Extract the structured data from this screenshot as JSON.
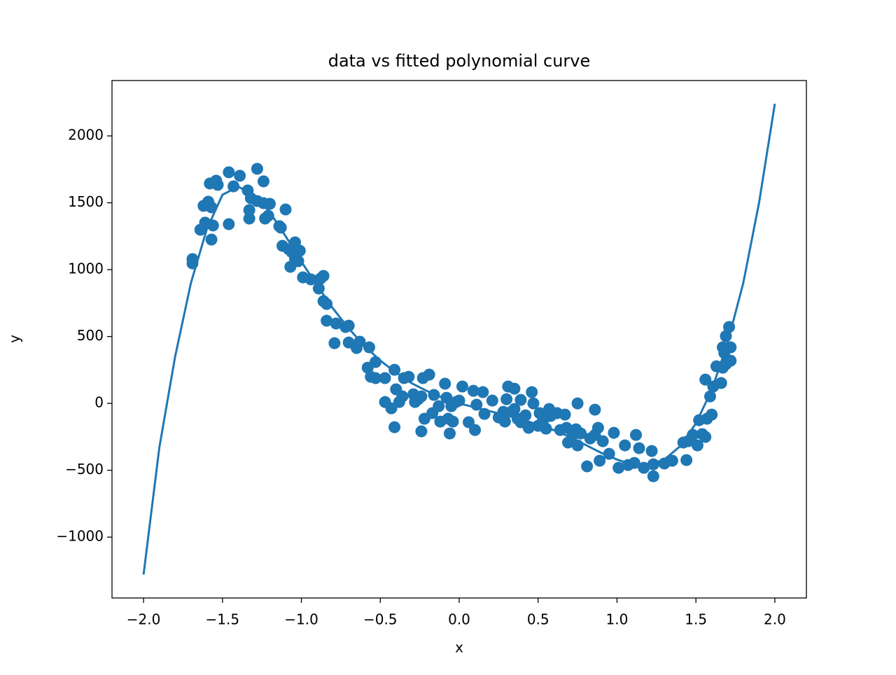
{
  "chart_data": {
    "type": "scatter",
    "title": "data vs fitted polynomial curve",
    "xlabel": "x",
    "ylabel": "y",
    "xlim": [
      -2.2,
      2.2
    ],
    "ylim": [
      -1455,
      2414
    ],
    "xticks": [
      {
        "value": -2,
        "label": "−2.0"
      },
      {
        "value": -1.5,
        "label": "−1.5"
      },
      {
        "value": -1,
        "label": "−1.0"
      },
      {
        "value": -0.5,
        "label": "−0.5"
      },
      {
        "value": 0,
        "label": "0.0"
      },
      {
        "value": 0.5,
        "label": "0.5"
      },
      {
        "value": 1,
        "label": "1.0"
      },
      {
        "value": 1.5,
        "label": "1.5"
      },
      {
        "value": 2,
        "label": "2.0"
      }
    ],
    "yticks": [
      {
        "value": -1000,
        "label": "−1000"
      },
      {
        "value": -500,
        "label": "−500"
      },
      0,
      500,
      1000,
      1500,
      2000
    ],
    "series": [
      {
        "type": "scatter",
        "color": "#1f77b4",
        "x": [
          -1.69,
          -1.69,
          -1.64,
          -1.62,
          -1.61,
          -1.59,
          -1.58,
          -1.57,
          -1.57,
          -1.56,
          -1.54,
          -1.53,
          -1.46,
          -1.46,
          -1.43,
          -1.39,
          -1.34,
          -1.33,
          -1.33,
          -1.32,
          -1.28,
          -1.28,
          -1.24,
          -1.24,
          -1.23,
          -1.2,
          -1.21,
          -1.14,
          -1.13,
          -1.1,
          -1.12,
          -1.08,
          -1.07,
          -1.06,
          -1.04,
          -1.04,
          -1.02,
          -1.01,
          -0.99,
          -0.94,
          -0.89,
          -0.88,
          -0.86,
          -0.86,
          -0.84,
          -0.84,
          -0.79,
          -0.78,
          -0.72,
          -0.7,
          -0.7,
          -0.65,
          -0.63,
          -0.57,
          -0.58,
          -0.56,
          -0.53,
          -0.53,
          -0.47,
          -0.47,
          -0.43,
          -0.41,
          -0.41,
          -0.4,
          -0.38,
          -0.36,
          -0.35,
          -0.32,
          -0.29,
          -0.28,
          -0.26,
          -0.24,
          -0.24,
          -0.23,
          -0.22,
          -0.19,
          -0.17,
          -0.16,
          -0.13,
          -0.12,
          -0.09,
          -0.08,
          -0.07,
          -0.06,
          -0.05,
          -0.04,
          -0.02,
          0.0,
          0.02,
          0.06,
          0.09,
          0.11,
          0.1,
          0.15,
          0.16,
          0.21,
          0.25,
          0.28,
          0.29,
          0.3,
          0.31,
          0.33,
          0.35,
          0.35,
          0.37,
          0.39,
          0.39,
          0.42,
          0.44,
          0.46,
          0.47,
          0.5,
          0.51,
          0.53,
          0.55,
          0.57,
          0.58,
          0.62,
          0.64,
          0.67,
          0.68,
          0.69,
          0.72,
          0.74,
          0.75,
          0.75,
          0.77,
          0.81,
          0.83,
          0.86,
          0.86,
          0.88,
          0.89,
          0.91,
          0.95,
          0.98,
          1.01,
          1.05,
          1.07,
          1.11,
          1.12,
          1.14,
          1.17,
          1.22,
          1.23,
          1.23,
          1.3,
          1.35,
          1.42,
          1.45,
          1.44,
          1.48,
          1.51,
          1.52,
          1.54,
          1.56,
          1.56,
          1.57,
          1.59,
          1.6,
          1.61,
          1.63,
          1.66,
          1.67,
          1.67,
          1.68,
          1.69,
          1.69,
          1.71,
          1.72,
          1.72
        ],
        "y": [
          1047,
          1079,
          1298,
          1477,
          1351,
          1508,
          1644,
          1466,
          1225,
          1330,
          1665,
          1634,
          1340,
          1728,
          1623,
          1702,
          1592,
          1445,
          1382,
          1534,
          1754,
          1513,
          1497,
          1660,
          1382,
          1492,
          1403,
          1325,
          1314,
          1450,
          1178,
          1152,
          1021,
          1131,
          1204,
          1079,
          1063,
          1141,
          942,
          927,
          859,
          932,
          953,
          764,
          743,
          618,
          450,
          597,
          571,
          581,
          455,
          414,
          461,
          419,
          267,
          199,
          309,
          189,
          189,
          10,
          -37,
          251,
          -178,
          105,
          10,
          52,
          189,
          199,
          68,
          10,
          31,
          -209,
          52,
          189,
          -115,
          215,
          -73,
          63,
          -21,
          -136,
          147,
          42,
          -115,
          -225,
          -21,
          -136,
          10,
          21,
          126,
          -141,
          94,
          -10,
          -199,
          84,
          -79,
          21,
          -105,
          -63,
          -136,
          31,
          126,
          -63,
          110,
          -42,
          -115,
          26,
          -141,
          -89,
          -183,
          84,
          0,
          -168,
          -73,
          -131,
          -189,
          -42,
          -94,
          -73,
          -199,
          -84,
          -183,
          -293,
          -236,
          -194,
          0,
          -314,
          -225,
          -471,
          -262,
          -47,
          -236,
          -183,
          -429,
          -283,
          -377,
          -220,
          -482,
          -314,
          -461,
          -445,
          -236,
          -335,
          -482,
          -356,
          -456,
          -545,
          -450,
          -429,
          -293,
          -283,
          -424,
          -236,
          -314,
          -126,
          -230,
          -251,
          178,
          -115,
          52,
          -84,
          126,
          277,
          152,
          267,
          419,
          377,
          503,
          293,
          571,
          319,
          419
        ]
      },
      {
        "type": "line",
        "color": "#1f77b4",
        "x": [
          -2.0,
          -1.9,
          -1.8,
          -1.7,
          -1.6,
          -1.5,
          -1.4,
          -1.3,
          -1.2,
          -1.1,
          -1.0,
          -0.9,
          -0.8,
          -0.7,
          -0.6,
          -0.5,
          -0.4,
          -0.3,
          -0.2,
          -0.1,
          0.0,
          0.1,
          0.2,
          0.3,
          0.4,
          0.5,
          0.6,
          0.7,
          0.8,
          0.9,
          1.0,
          1.1,
          1.2,
          1.3,
          1.4,
          1.5,
          1.6,
          1.7,
          1.8,
          1.9,
          2.0
        ],
        "y": [
          -1280,
          -330,
          350,
          900,
          1300,
          1560,
          1620,
          1560,
          1430,
          1250,
          1060,
          880,
          710,
          560,
          430,
          320,
          230,
          150,
          90,
          40,
          0,
          -30,
          -60,
          -90,
          -120,
          -160,
          -200,
          -250,
          -310,
          -370,
          -420,
          -460,
          -460,
          -420,
          -320,
          -150,
          100,
          450,
          900,
          1500,
          2240
        ]
      }
    ]
  }
}
